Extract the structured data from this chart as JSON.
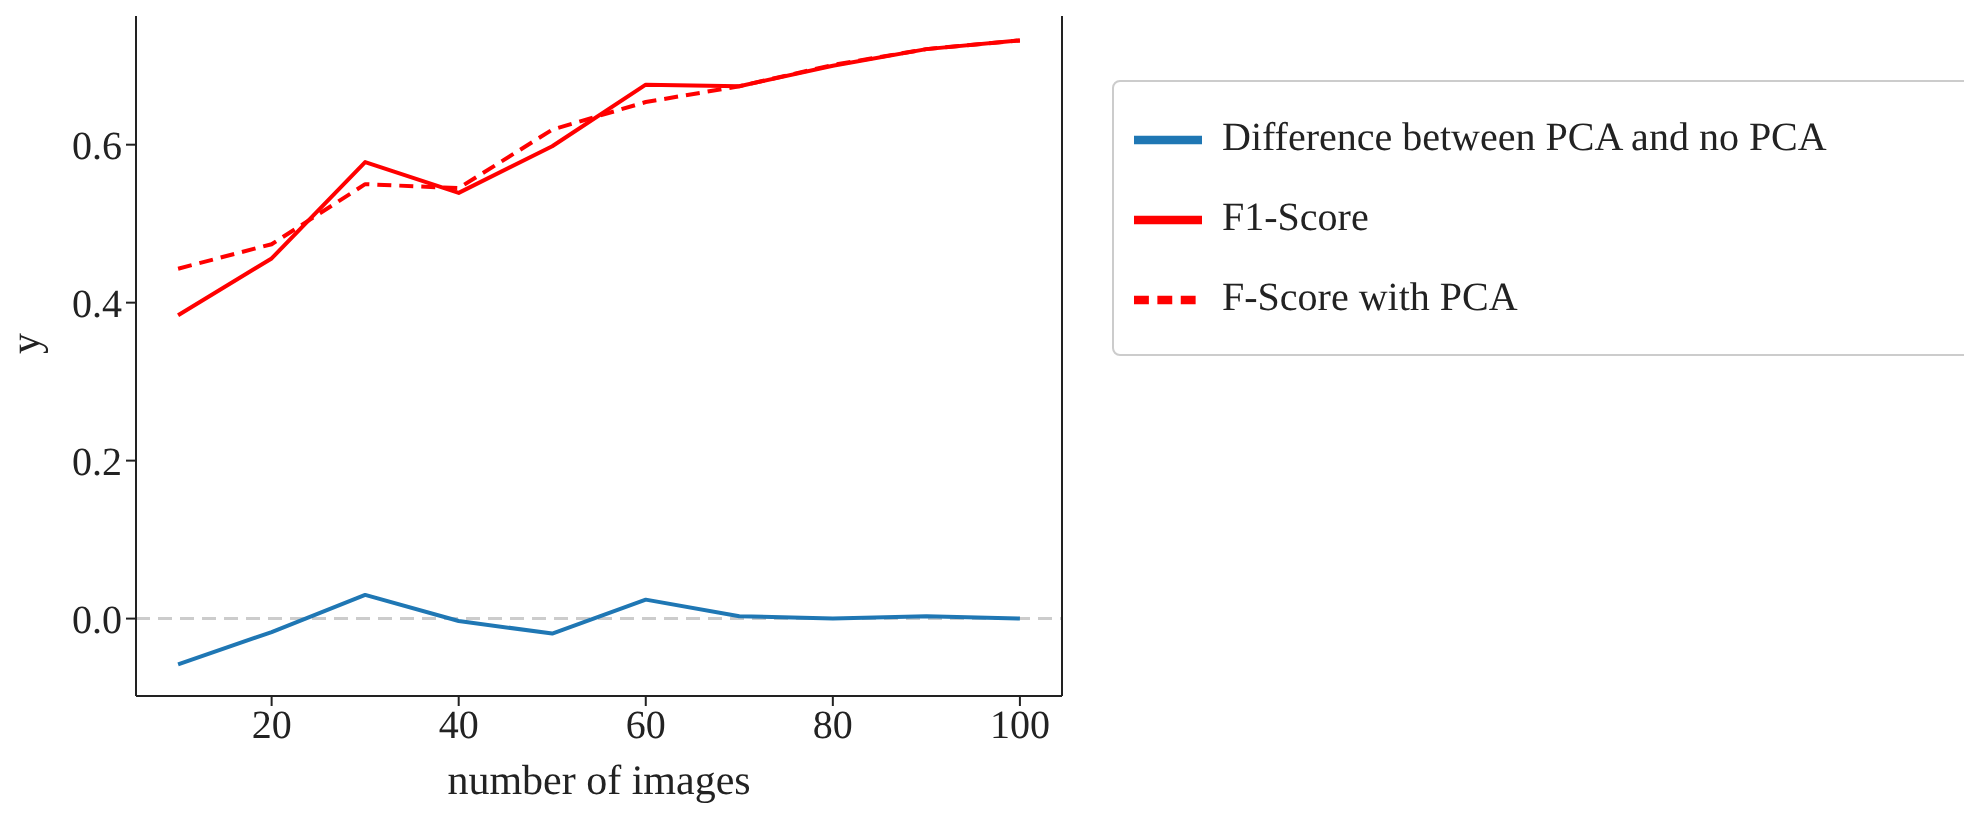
{
  "chart_data": {
    "type": "line",
    "xlabel": "number of images",
    "ylabel": "y",
    "x": [
      10,
      20,
      30,
      40,
      50,
      60,
      70,
      80,
      90,
      100
    ],
    "series": [
      {
        "name": "Difference between PCA and no PCA",
        "color": "#1f77b4",
        "line_style": "solid",
        "values": [
          -0.058,
          -0.017,
          0.03,
          -0.003,
          -0.019,
          0.024,
          0.003,
          0.0,
          0.003,
          0.0
        ]
      },
      {
        "name": "F1-Score",
        "color": "#ff0000",
        "line_style": "solid",
        "values": [
          0.384,
          0.456,
          0.578,
          0.539,
          0.598,
          0.676,
          0.674,
          0.7,
          0.721,
          0.732
        ]
      },
      {
        "name": "F-Score with PCA",
        "color": "#ff0000",
        "line_style": "dashed",
        "values": [
          0.443,
          0.474,
          0.55,
          0.545,
          0.619,
          0.654,
          0.674,
          0.701,
          0.721,
          0.732
        ]
      }
    ],
    "xlim": [
      5.5,
      104.5
    ],
    "xticks": [
      20,
      40,
      60,
      80,
      100
    ],
    "ylim": [
      -0.098,
      0.768
    ],
    "yticks": [
      {
        "value": 0,
        "label": "0.0"
      },
      0.2,
      0.4,
      0.6
    ],
    "ref_lines": [
      {
        "axis": "y",
        "value": 0,
        "color": "#cccccc",
        "line_style": "dashed"
      }
    ],
    "grid": false,
    "legend": "right",
    "marker": "none"
  }
}
